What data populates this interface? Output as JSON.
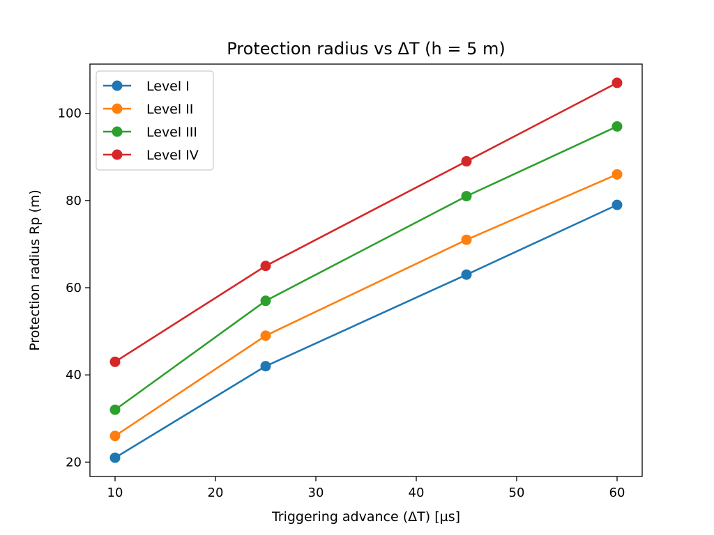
{
  "chart_data": {
    "type": "line",
    "title": "Protection radius vs ΔT (h = 5 m)",
    "xlabel": "Triggering advance (ΔT) [µs]",
    "ylabel": "Protection radius Rp (m)",
    "x": [
      10,
      25,
      45,
      60
    ],
    "xlim": [
      7.5,
      62.5
    ],
    "ylim": [
      16.7,
      111.3
    ],
    "xticks": [
      10,
      20,
      30,
      40,
      50,
      60
    ],
    "yticks": [
      20,
      40,
      60,
      80,
      100
    ],
    "grid": false,
    "legend_position": "top-left",
    "series": [
      {
        "name": "Level I",
        "color": "#1f77b4",
        "values": [
          21,
          42,
          63,
          79
        ]
      },
      {
        "name": "Level II",
        "color": "#ff7f0e",
        "values": [
          26,
          49,
          71,
          86
        ]
      },
      {
        "name": "Level III",
        "color": "#2ca02c",
        "values": [
          32,
          57,
          81,
          97
        ]
      },
      {
        "name": "Level IV",
        "color": "#d62728",
        "values": [
          43,
          65,
          89,
          107
        ]
      }
    ]
  }
}
